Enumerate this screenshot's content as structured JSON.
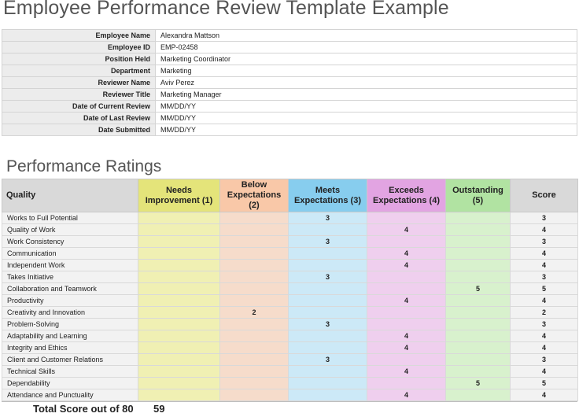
{
  "title": "Employee Performance Review Template Example",
  "info": [
    {
      "label": "Employee Name",
      "value": "Alexandra Mattson"
    },
    {
      "label": "Employee ID",
      "value": "EMP-02458"
    },
    {
      "label": "Position Held",
      "value": "Marketing Coordinator"
    },
    {
      "label": "Department",
      "value": "Marketing"
    },
    {
      "label": "Reviewer Name",
      "value": "Aviv Perez"
    },
    {
      "label": "Reviewer Title",
      "value": "Marketing Manager"
    },
    {
      "label": "Date of Current Review",
      "value": "MM/DD/YY"
    },
    {
      "label": "Date of Last Review",
      "value": "MM/DD/YY"
    },
    {
      "label": "Date Submitted",
      "value": "MM/DD/YY"
    }
  ],
  "ratings_title": "Performance Ratings",
  "headers": {
    "quality": "Quality",
    "needs": "Needs Improvement (1)",
    "below": "Below Expectations (2)",
    "meets": "Meets Expectations (3)",
    "exceeds": "Exceeds Expectations (4)",
    "outstanding": "Outstanding (5)",
    "score": "Score"
  },
  "rows": [
    {
      "quality": "Works to Full Potential",
      "needs": "",
      "below": "",
      "meets": "3",
      "exceeds": "",
      "outstanding": "",
      "score": "3"
    },
    {
      "quality": "Quality of Work",
      "needs": "",
      "below": "",
      "meets": "",
      "exceeds": "4",
      "outstanding": "",
      "score": "4"
    },
    {
      "quality": "Work Consistency",
      "needs": "",
      "below": "",
      "meets": "3",
      "exceeds": "",
      "outstanding": "",
      "score": "3"
    },
    {
      "quality": "Communication",
      "needs": "",
      "below": "",
      "meets": "",
      "exceeds": "4",
      "outstanding": "",
      "score": "4"
    },
    {
      "quality": "Independent Work",
      "needs": "",
      "below": "",
      "meets": "",
      "exceeds": "4",
      "outstanding": "",
      "score": "4"
    },
    {
      "quality": "Takes Initiative",
      "needs": "",
      "below": "",
      "meets": "3",
      "exceeds": "",
      "outstanding": "",
      "score": "3"
    },
    {
      "quality": "Collaboration and Teamwork",
      "needs": "",
      "below": "",
      "meets": "",
      "exceeds": "",
      "outstanding": "5",
      "score": "5"
    },
    {
      "quality": "Productivity",
      "needs": "",
      "below": "",
      "meets": "",
      "exceeds": "4",
      "outstanding": "",
      "score": "4"
    },
    {
      "quality": "Creativity and Innovation",
      "needs": "",
      "below": "2",
      "meets": "",
      "exceeds": "",
      "outstanding": "",
      "score": "2"
    },
    {
      "quality": "Problem-Solving",
      "needs": "",
      "below": "",
      "meets": "3",
      "exceeds": "",
      "outstanding": "",
      "score": "3"
    },
    {
      "quality": "Adaptability and Learning",
      "needs": "",
      "below": "",
      "meets": "",
      "exceeds": "4",
      "outstanding": "",
      "score": "4"
    },
    {
      "quality": "Integrity and Ethics",
      "needs": "",
      "below": "",
      "meets": "",
      "exceeds": "4",
      "outstanding": "",
      "score": "4"
    },
    {
      "quality": "Client and Customer Relations",
      "needs": "",
      "below": "",
      "meets": "3",
      "exceeds": "",
      "outstanding": "",
      "score": "3"
    },
    {
      "quality": "Technical Skills",
      "needs": "",
      "below": "",
      "meets": "",
      "exceeds": "4",
      "outstanding": "",
      "score": "4"
    },
    {
      "quality": "Dependability",
      "needs": "",
      "below": "",
      "meets": "",
      "exceeds": "",
      "outstanding": "5",
      "score": "5"
    },
    {
      "quality": "Attendance and Punctuality",
      "needs": "",
      "below": "",
      "meets": "",
      "exceeds": "4",
      "outstanding": "",
      "score": "4"
    }
  ],
  "total": {
    "label": "Total Score out of 80",
    "value": "59"
  },
  "colors": {
    "needs": "#e4e47a",
    "below": "#f9c8a8",
    "meets": "#87cdee",
    "exceeds": "#e2a4e2",
    "outstanding": "#b1e3a2"
  }
}
